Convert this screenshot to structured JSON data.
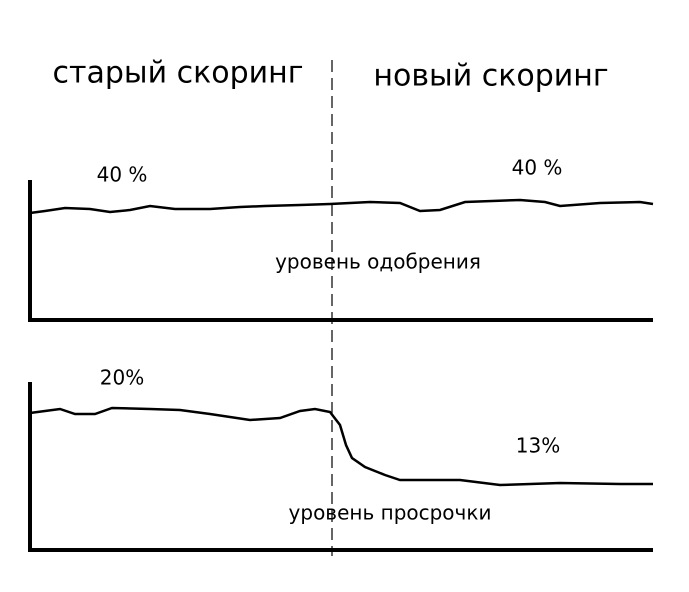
{
  "header": {
    "left_title": "старый скоринг",
    "right_title": "новый скоринг"
  },
  "panels": [
    {
      "left_label": "40 %",
      "right_label": "40 %",
      "caption": "уровень одобрения"
    },
    {
      "left_label": "20%",
      "right_label": "13%",
      "caption": "уровень просрочки"
    }
  ]
}
